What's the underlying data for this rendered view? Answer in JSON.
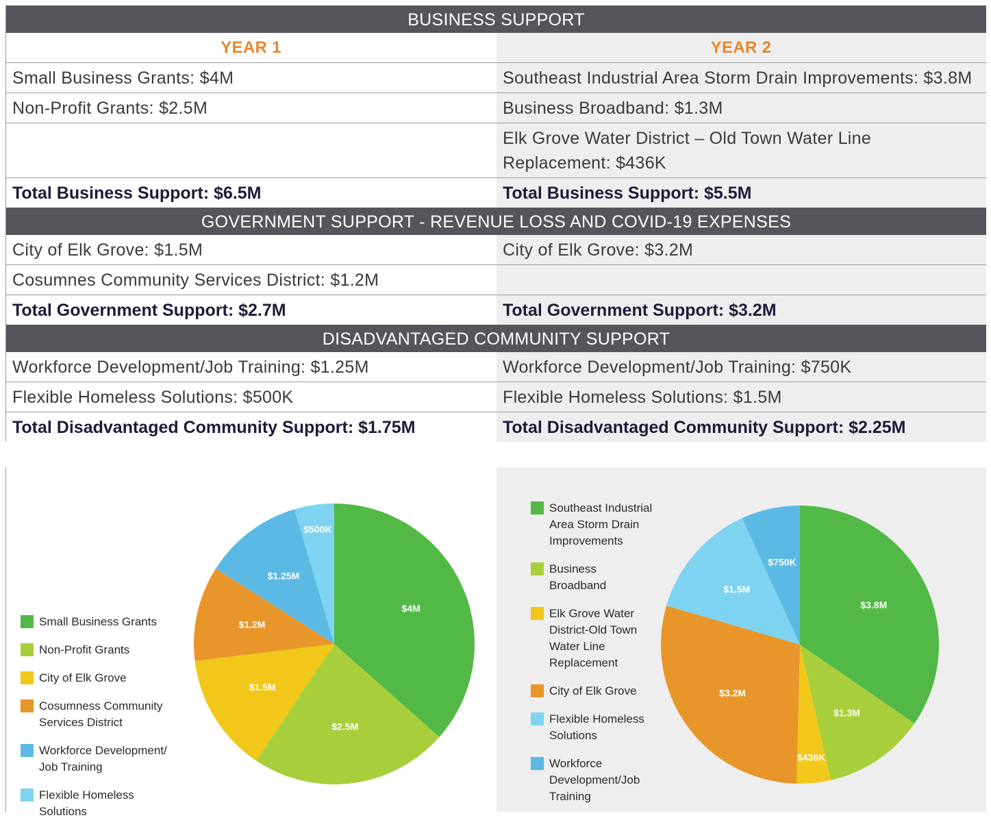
{
  "sections": [
    {
      "title": "BUSINESS SUPPORT",
      "columns": [
        "YEAR 1",
        "YEAR 2"
      ],
      "rows": [
        [
          "Small Business Grants: $4M",
          "Southeast Industrial Area Storm Drain Improvements: $3.8M"
        ],
        [
          "Non-Profit Grants: $2.5M",
          "Business Broadband: $1.3M"
        ],
        [
          null,
          "Elk Grove Water District – Old Town Water Line Replacement: $436K"
        ]
      ],
      "totals": [
        "Total Business Support: $6.5M",
        "Total Business Support: $5.5M"
      ]
    },
    {
      "title": "GOVERNMENT SUPPORT - REVENUE LOSS AND COVID-19 EXPENSES",
      "rows": [
        [
          "City of Elk Grove: $1.5M",
          "City of Elk Grove: $3.2M"
        ],
        [
          "Cosumnes Community Services District: $1.2M",
          null
        ]
      ],
      "totals": [
        "Total Government Support: $2.7M",
        "Total Government Support: $3.2M"
      ]
    },
    {
      "title": "DISADVANTAGED COMMUNITY SUPPORT",
      "rows": [
        [
          "Workforce Development/Job Training: $1.25M",
          "Workforce Development/Job Training: $750K"
        ],
        [
          "Flexible Homeless Solutions: $500K",
          "Flexible Homeless Solutions: $1.5M"
        ]
      ],
      "totals": [
        "Total Disadvantaged Community Support: $1.75M",
        "Total Disadvantaged Community Support: $2.25M"
      ]
    }
  ],
  "charts": [
    {
      "type": "pie",
      "categories": [
        "Small Business Grants",
        "Non-Profit Grants",
        "City of Elk Grove",
        "Cosumness Community Services District",
        "Workforce Development/ Job Training",
        "Flexible Homeless Solutions"
      ],
      "values": [
        4,
        2.5,
        1.5,
        1.2,
        1.25,
        0.5
      ],
      "value_labels": [
        "$4M",
        "$2.5M",
        "$1.5M",
        "$1.2M",
        "$1.25M",
        "$500K"
      ],
      "colors": [
        "#52b947",
        "#a8cf3b",
        "#f1c719",
        "#e8952a",
        "#5cb9e4",
        "#7dd3f0"
      ]
    },
    {
      "type": "pie",
      "categories": [
        "Southeast Industrial Area Storm Drain Improvements",
        "Business Broadband",
        "Elk Grove Water District-Old Town Water Line Replacement",
        "City of Elk Grove",
        "Flexible Homeless Solutions",
        "Workforce Development/Job Training"
      ],
      "values": [
        3.8,
        1.3,
        0.436,
        3.2,
        1.5,
        0.75
      ],
      "value_labels": [
        "$3.8M",
        "$1.3M",
        "$436K",
        "$3.2M",
        "$1.5M",
        "$750K"
      ],
      "colors": [
        "#52b947",
        "#a8cf3b",
        "#f1c719",
        "#e8952a",
        "#7dd3f0",
        "#5cb9e4"
      ]
    }
  ]
}
